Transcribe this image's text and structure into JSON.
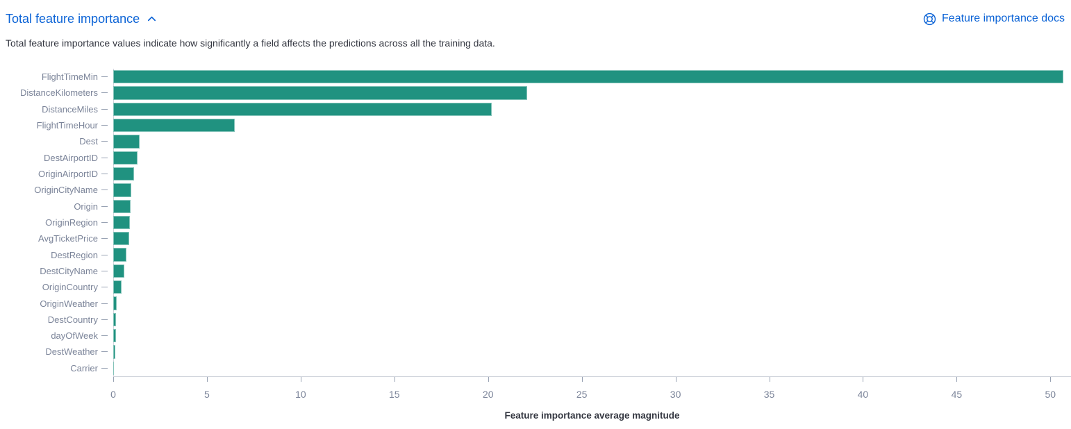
{
  "header": {
    "title": "Total feature importance",
    "collapse_icon": "chevron-up-icon",
    "docs_link": {
      "label": "Feature importance docs",
      "icon": "lifebuoy-icon"
    }
  },
  "subtitle": "Total feature importance values indicate how significantly a field affects the predictions across all the training data.",
  "colors": {
    "bar": "#209280",
    "link_blue": "#0b63d6",
    "body_text": "#343741",
    "axis_label_text": "#7b8499",
    "axis_line": "#d0d4dc",
    "tick_mark": "#98a2b3"
  },
  "chart_data": {
    "type": "bar",
    "orientation": "horizontal",
    "title": "Total feature importance",
    "categories": [
      "FlightTimeMin",
      "DistanceKilometers",
      "DistanceMiles",
      "FlightTimeHour",
      "Dest",
      "DestAirportID",
      "OriginAirportID",
      "OriginCityName",
      "Origin",
      "OriginRegion",
      "AvgTicketPrice",
      "DestRegion",
      "DestCityName",
      "OriginCountry",
      "OriginWeather",
      "DestCountry",
      "dayOfWeek",
      "DestWeather",
      "Carrier"
    ],
    "values": [
      50.7,
      22.1,
      20.2,
      6.5,
      1.4,
      1.3,
      1.1,
      0.95,
      0.93,
      0.9,
      0.85,
      0.72,
      0.6,
      0.45,
      0.17,
      0.16,
      0.14,
      0.12,
      0.03
    ],
    "xlabel": "Feature importance average magnitude",
    "ylabel": "",
    "xticks": [
      0,
      5,
      10,
      15,
      20,
      25,
      30,
      35,
      40,
      45,
      50
    ],
    "xlim": [
      0,
      51.1
    ],
    "grid": false,
    "legend": false,
    "bar_color": "#209280"
  }
}
